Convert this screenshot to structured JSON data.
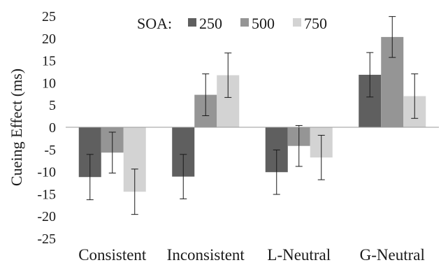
{
  "chart_data": {
    "type": "bar",
    "title": "",
    "xlabel": "",
    "ylabel": "Cueing Effect (ms)",
    "ylim": [
      -25,
      25
    ],
    "y_ticks": [
      "25",
      "20",
      "15",
      "10",
      "5",
      "0",
      "-5",
      "-10",
      "-15",
      "-20",
      "-25"
    ],
    "grid": false,
    "legend_position": "top",
    "legend_title": "SOA:",
    "categories": [
      "Consistent",
      "Inconsistent",
      "L-Neutral",
      "G-Neutral"
    ],
    "series": [
      {
        "name": "250",
        "color": "#5f5f5f",
        "values": [
          -11.2,
          -11.1,
          -10.1,
          11.8
        ],
        "errors": [
          5.1,
          5.0,
          5.0,
          5.0
        ]
      },
      {
        "name": "500",
        "color": "#959595",
        "values": [
          -5.7,
          7.3,
          -4.2,
          20.3
        ],
        "errors": [
          4.6,
          4.7,
          4.6,
          4.6
        ]
      },
      {
        "name": "750",
        "color": "#d3d3d3",
        "values": [
          -14.5,
          11.7,
          -6.8,
          7.0
        ],
        "errors": [
          5.1,
          5.0,
          5.0,
          5.0
        ]
      }
    ],
    "error_bars": true
  }
}
